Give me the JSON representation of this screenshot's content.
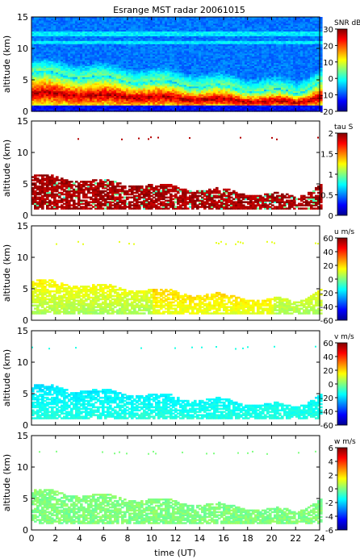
{
  "chart_data": [
    {
      "type": "heatmap",
      "title": "Esrange MST radar 20061015",
      "ylabel": "altitude (km)",
      "xlabel": "",
      "ylim": [
        0,
        15
      ],
      "yticks": [
        0,
        5,
        10,
        15
      ],
      "xlim": [
        0,
        24
      ],
      "xticks": [
        0,
        2,
        4,
        6,
        8,
        10,
        12,
        14,
        16,
        18,
        20,
        22,
        24
      ],
      "colorbar": {
        "label": "SNR dB",
        "range": [
          -20,
          30
        ],
        "ticks": [
          30,
          20,
          10,
          0,
          -10,
          -20
        ]
      },
      "features": [
        {
          "x": [
            0,
            3,
            6,
            9,
            12,
            15,
            18,
            21,
            24
          ],
          "y": [
            6.0,
            5.6,
            5.2,
            4.8,
            4.2,
            3.6,
            3.2,
            2.8,
            3.5
          ],
          "name": ""
        }
      ]
    },
    {
      "type": "heatmap",
      "title": "",
      "ylabel": "altitude (km)",
      "xlabel": "",
      "ylim": [
        0,
        15
      ],
      "yticks": [
        0,
        5,
        10,
        15
      ],
      "xlim": [
        0,
        24
      ],
      "xticks": [
        0,
        2,
        4,
        6,
        8,
        10,
        12,
        14,
        16,
        18,
        20,
        22,
        24
      ],
      "colorbar": {
        "label": "tau S",
        "range": [
          0,
          2
        ],
        "ticks": [
          2,
          1.5,
          1,
          0.5,
          0
        ]
      }
    },
    {
      "type": "heatmap",
      "title": "",
      "ylabel": "altitude (km)",
      "xlabel": "",
      "ylim": [
        0,
        15
      ],
      "yticks": [
        0,
        5,
        10,
        15
      ],
      "xlim": [
        0,
        24
      ],
      "xticks": [
        0,
        2,
        4,
        6,
        8,
        10,
        12,
        14,
        16,
        18,
        20,
        22,
        24
      ],
      "colorbar": {
        "label": "u m/s",
        "range": [
          -60,
          60
        ],
        "ticks": [
          60,
          40,
          20,
          0,
          -20,
          -40,
          -60
        ]
      }
    },
    {
      "type": "heatmap",
      "title": "",
      "ylabel": "altitude (km)",
      "xlabel": "",
      "ylim": [
        0,
        15
      ],
      "yticks": [
        0,
        5,
        10,
        15
      ],
      "xlim": [
        0,
        24
      ],
      "xticks": [
        0,
        2,
        4,
        6,
        8,
        10,
        12,
        14,
        16,
        18,
        20,
        22,
        24
      ],
      "colorbar": {
        "label": "v m/s",
        "range": [
          -60,
          60
        ],
        "ticks": [
          60,
          40,
          20,
          0,
          -20,
          -40,
          -60
        ]
      }
    },
    {
      "type": "heatmap",
      "title": "",
      "ylabel": "altitude (km)",
      "xlabel": "time (UT)",
      "ylim": [
        0,
        15
      ],
      "yticks": [
        0,
        5,
        10,
        15
      ],
      "xlim": [
        0,
        24
      ],
      "xticks": [
        0,
        2,
        4,
        6,
        8,
        10,
        12,
        14,
        16,
        18,
        20,
        22,
        24
      ],
      "colorbar": {
        "label": "w m/s",
        "range": [
          -6,
          6
        ],
        "ticks": [
          6,
          4,
          2,
          0,
          -2,
          -4,
          -6
        ]
      }
    }
  ],
  "colors": {
    "jet": [
      "#00008f",
      "#0000ff",
      "#0080ff",
      "#00ffff",
      "#80ff80",
      "#ffff00",
      "#ff8000",
      "#ff0000",
      "#800000"
    ],
    "background": "#ffffff"
  }
}
